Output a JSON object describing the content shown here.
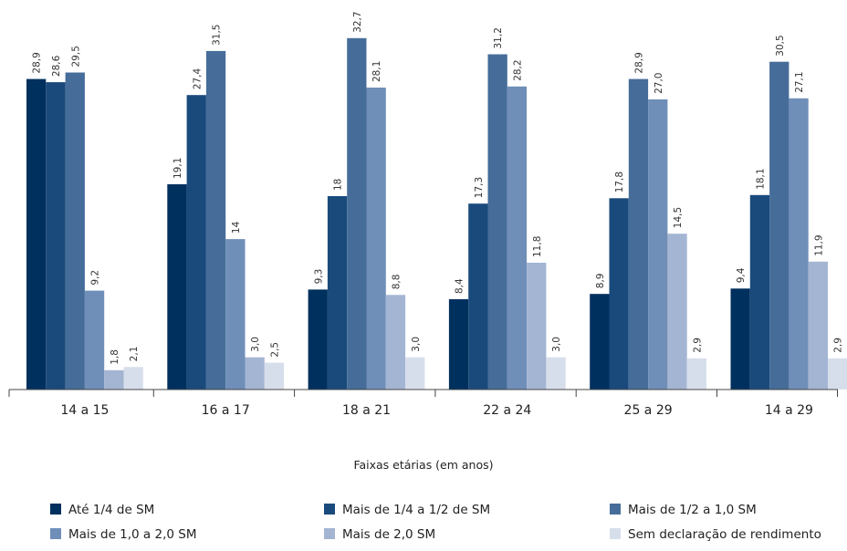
{
  "chart_data": {
    "type": "bar",
    "title": "",
    "xlabel": "Faixas etárias (em anos)",
    "ylabel": "",
    "ylim": [
      0,
      34
    ],
    "grid": false,
    "legend_position": "bottom",
    "categories": [
      "14 a 15",
      "16 a 17",
      "18 a 21",
      "22 a 24",
      "25 a 29",
      "14 a 29"
    ],
    "series": [
      {
        "name": "Até 1/4 de SM",
        "color": "#00305e",
        "values": [
          28.9,
          19.1,
          9.3,
          8.4,
          8.9,
          9.4
        ],
        "labels": [
          "28,9",
          "19,1",
          "9,3",
          "8,4",
          "8,9",
          "9,4"
        ]
      },
      {
        "name": "Mais de 1/4 a 1/2 de SM",
        "color": "#1a4a7c",
        "values": [
          28.6,
          27.4,
          18.0,
          17.3,
          17.8,
          18.1
        ],
        "labels": [
          "28,6",
          "27,4",
          "18",
          "17,3",
          "17,8",
          "18,1"
        ]
      },
      {
        "name": "Mais de 1/2 a 1,0 SM",
        "color": "#466d99",
        "values": [
          29.5,
          31.5,
          32.7,
          31.2,
          28.9,
          30.5
        ],
        "labels": [
          "29,5",
          "31,5",
          "32,7",
          "31,2",
          "28,9",
          "30,5"
        ]
      },
      {
        "name": "Mais de 1,0 a 2,0 SM",
        "color": "#6f8fb8",
        "values": [
          9.2,
          14.0,
          28.1,
          28.2,
          27.0,
          27.1
        ],
        "labels": [
          "9,2",
          "14",
          "28,1",
          "28,2",
          "27,0",
          "27,1"
        ]
      },
      {
        "name": "Mais de 2,0 SM",
        "color": "#a4b5d3",
        "values": [
          1.8,
          3.0,
          8.8,
          11.8,
          14.5,
          11.9
        ],
        "labels": [
          "1,8",
          "3,0",
          "8,8",
          "11,8",
          "14,5",
          "11,9"
        ]
      },
      {
        "name": "Sem declaração de rendimento",
        "color": "#d7deeb",
        "values": [
          2.1,
          2.5,
          3.0,
          3.0,
          2.9,
          2.9
        ],
        "labels": [
          "2,1",
          "2,5",
          "3,0",
          "3,0",
          "2,9",
          "2,9"
        ]
      }
    ]
  }
}
